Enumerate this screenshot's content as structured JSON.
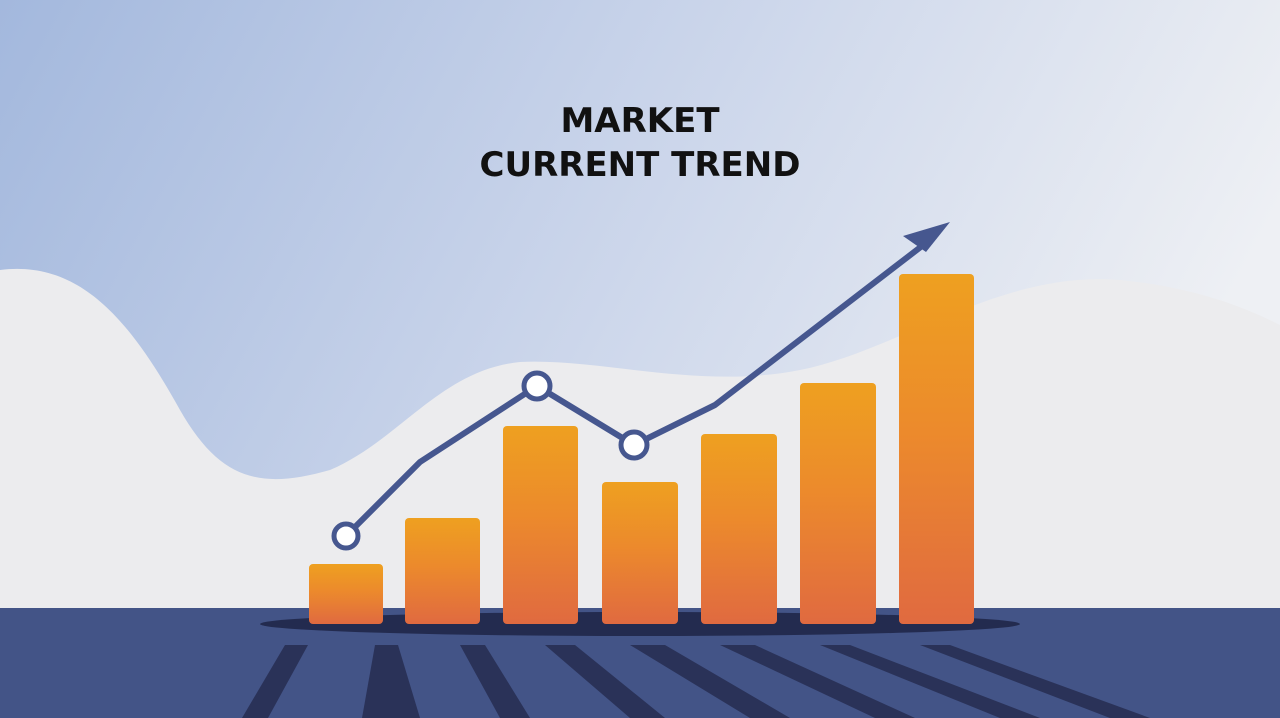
{
  "title": {
    "line1": "MARKET",
    "line2": "CURRENT TREND"
  }
}
